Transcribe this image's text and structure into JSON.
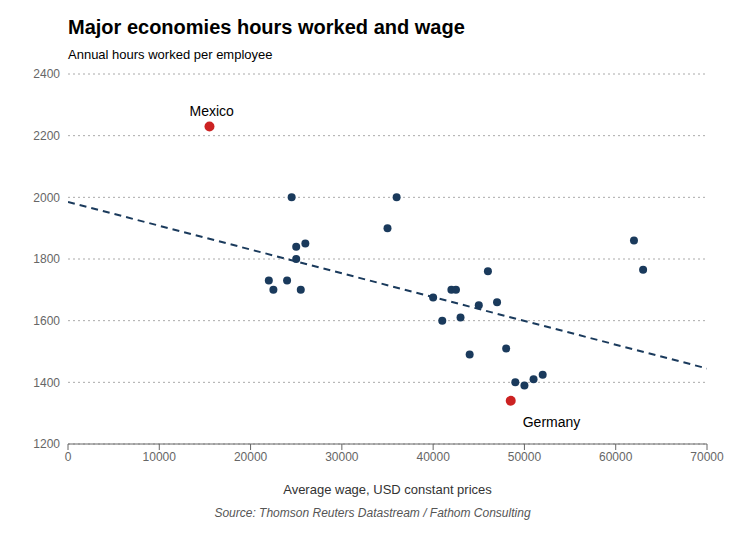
{
  "chart_data": {
    "type": "scatter",
    "title": "Major economies hours worked and wage",
    "ylabel": "Annual hours worked per employee",
    "xlabel": "Average wage, USD constant prices",
    "source": "Source: Thomson Reuters Datastream / Fathom Consulting",
    "xlim": [
      0,
      70000
    ],
    "ylim": [
      1200,
      2400
    ],
    "xticks": [
      0,
      10000,
      20000,
      30000,
      40000,
      50000,
      60000,
      70000
    ],
    "yticks": [
      1200,
      1400,
      1600,
      1800,
      2000,
      2200,
      2400
    ],
    "grid": "y",
    "series": [
      {
        "type": "scatter",
        "marker": "circle",
        "color": "#1a3a5c",
        "x": [
          25000,
          26000,
          24000,
          25500,
          25000,
          24500,
          35000,
          36000,
          40000,
          42000,
          41000,
          43000,
          44000,
          42500,
          45000,
          46000,
          47000,
          48000,
          49000,
          50000,
          51000,
          52000,
          62000,
          63000,
          22000,
          22500
        ],
        "y": [
          1840,
          1850,
          1730,
          1700,
          1800,
          2000,
          1900,
          2000,
          1675,
          1700,
          1600,
          1610,
          1490,
          1700,
          1650,
          1760,
          1660,
          1510,
          1400,
          1390,
          1410,
          1425,
          1860,
          1765,
          1730,
          1700
        ]
      },
      {
        "type": "scatter",
        "marker": "circle",
        "color": "#cc2222",
        "x": [
          15500,
          48500
        ],
        "y": [
          2230,
          1340
        ],
        "labels": [
          "Mexico",
          "Germany"
        ]
      },
      {
        "type": "line",
        "line_style": "dashed",
        "color": "#1a3a5c",
        "x": [
          0,
          70000
        ],
        "y": [
          1985,
          1445
        ]
      }
    ]
  }
}
